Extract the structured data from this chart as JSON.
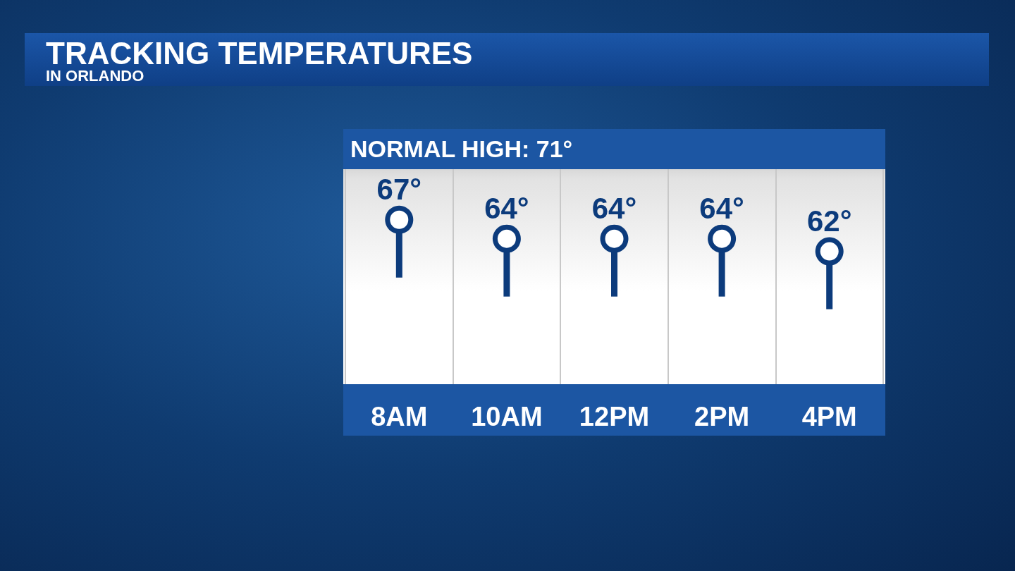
{
  "chart_data": {
    "type": "lollipop",
    "title": "TRACKING TEMPERATURES",
    "subtitle": "IN ORLANDO",
    "annotations": [
      "NORMAL HIGH: 71°"
    ],
    "categories": [
      "8AM",
      "10AM",
      "12PM",
      "2PM",
      "4PM"
    ],
    "values": [
      67,
      64,
      64,
      64,
      62
    ],
    "value_labels": [
      "67°",
      "64°",
      "64°",
      "64°",
      "62°"
    ],
    "color": "#0c3b7c",
    "grid": "x",
    "marker": "circle"
  }
}
